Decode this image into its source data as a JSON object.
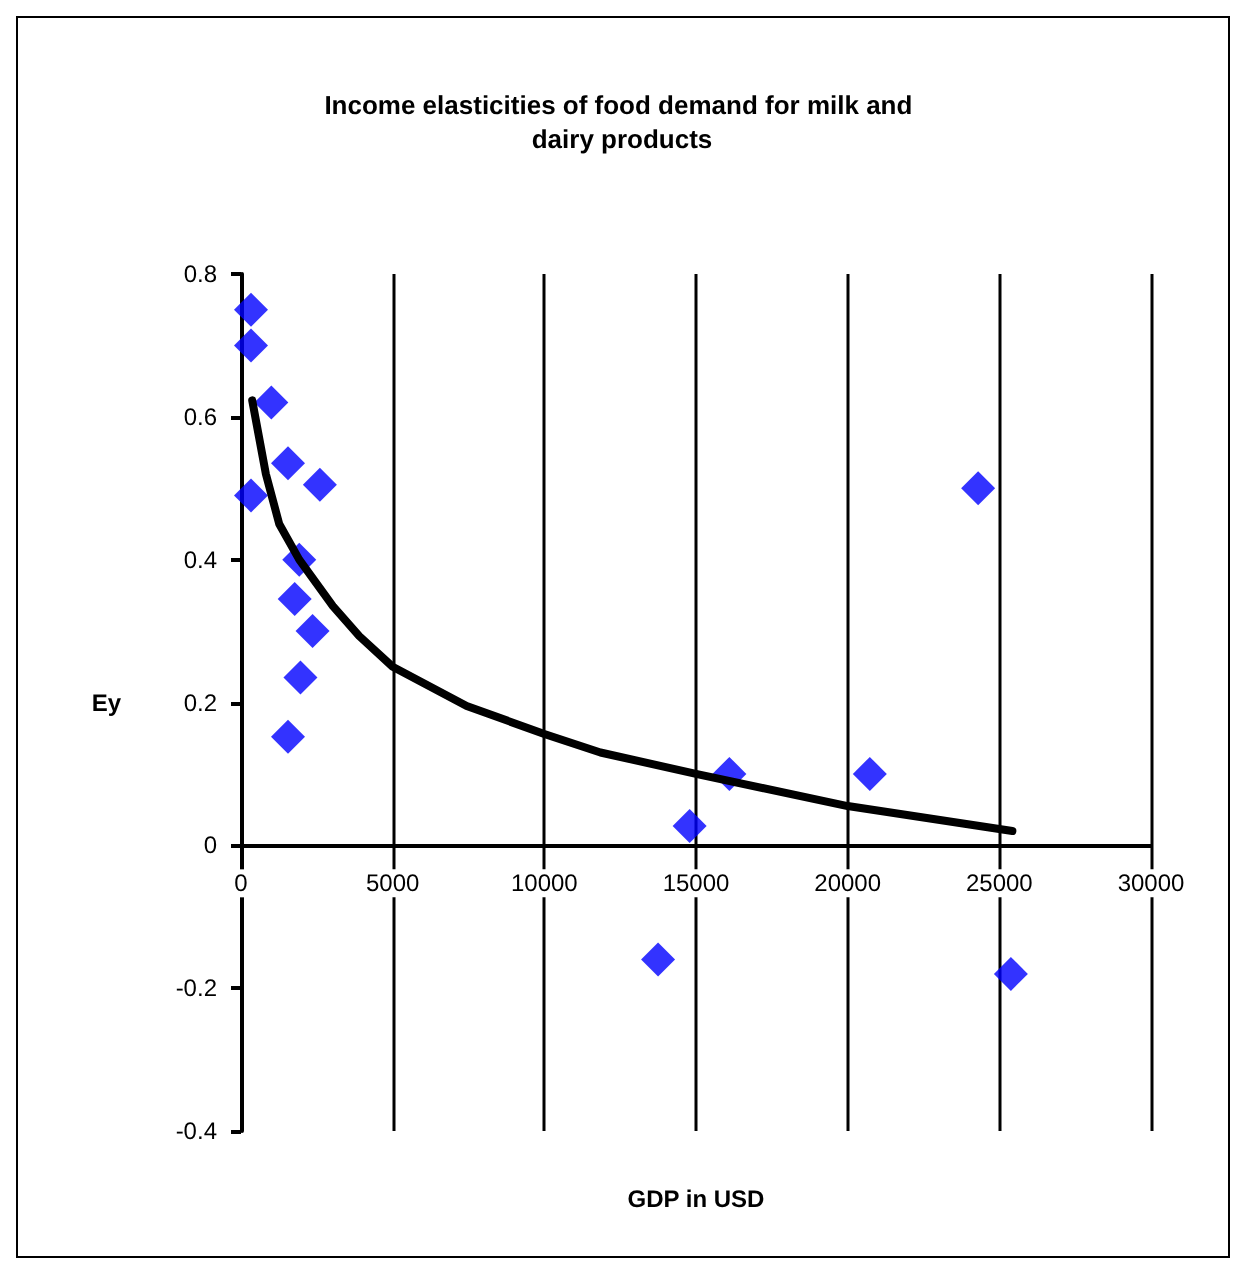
{
  "chart_data": {
    "type": "scatter",
    "title": "Income elasticities of food demand for milk and dairy products",
    "xlabel": "GDP in USD",
    "ylabel": "Ey",
    "xlim": [
      0,
      30000
    ],
    "xticks": [
      0,
      5000,
      10000,
      15000,
      20000,
      25000,
      30000
    ],
    "ylim": [
      -0.4,
      0.8
    ],
    "yticks": [
      -0.4,
      -0.2,
      0,
      0.2,
      0.4,
      0.6,
      0.8
    ],
    "grid": "x",
    "series": [
      {
        "color": "#0000ff",
        "marker": "diamond",
        "x": [
          330,
          330,
          1000,
          1550,
          330,
          2600,
          1920,
          1770,
          2360,
          1960,
          1550,
          24300,
          16100,
          20730,
          14790,
          13750,
          25380
        ],
        "values": [
          0.75,
          0.7,
          0.62,
          0.535,
          0.49,
          0.505,
          0.4,
          0.345,
          0.3,
          0.235,
          0.152,
          0.5,
          0.1,
          0.1,
          0.027,
          -0.16,
          -0.18
        ]
      },
      {
        "type": "line",
        "color": "#000000",
        "marker": "none",
        "x": [
          370,
          820,
          1260,
          1920,
          3030,
          3900,
          5000,
          7440,
          10000,
          11850,
          15000,
          20000,
          25430
        ],
        "values": [
          0.623,
          0.52,
          0.45,
          0.4,
          0.335,
          0.293,
          0.25,
          0.195,
          0.156,
          0.13,
          0.1,
          0.055,
          0.02
        ]
      }
    ]
  }
}
